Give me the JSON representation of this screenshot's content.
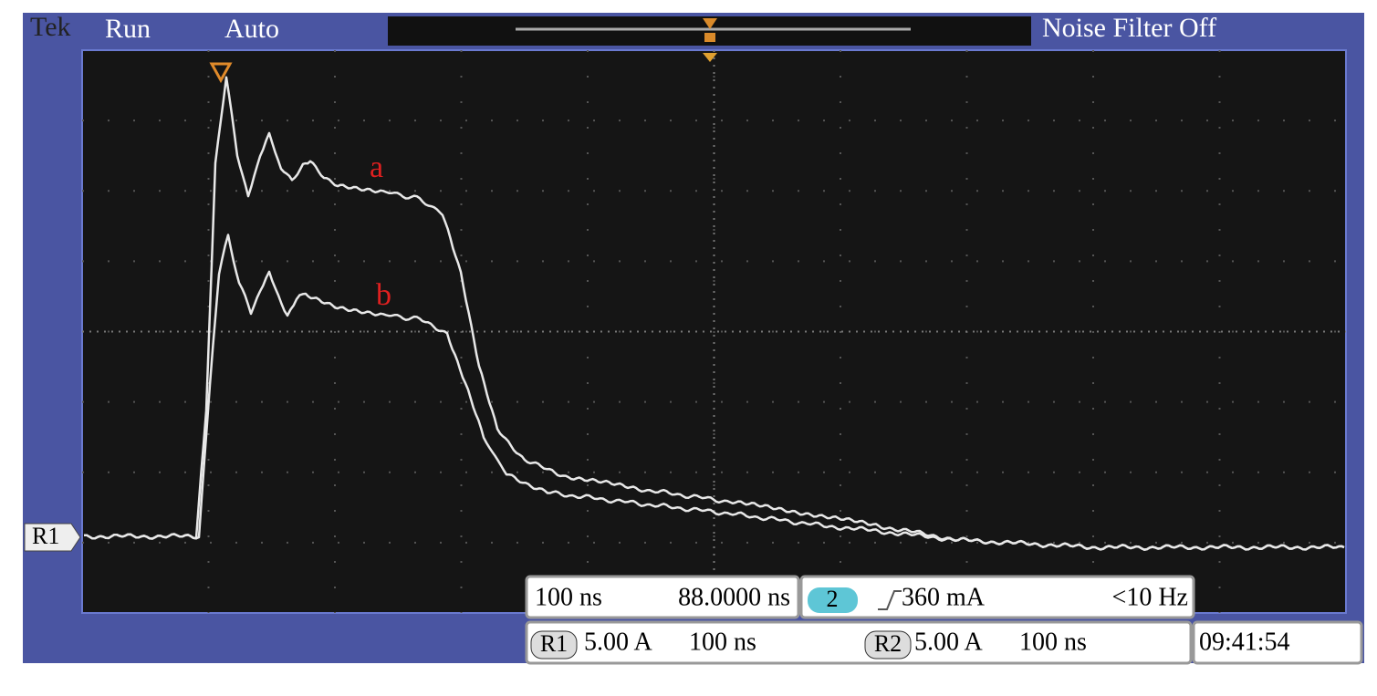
{
  "header": {
    "brand": "Tek",
    "state": "Run",
    "mode": "Auto",
    "filter": "Noise Filter Off"
  },
  "ground_marker": "R1",
  "trace_labels": [
    "a",
    "b"
  ],
  "timebase": {
    "scale": "100 ns",
    "position": "88.0000 ns"
  },
  "trigger": {
    "channel": "2",
    "level": "360 mA",
    "frequency": "<10 Hz"
  },
  "references": [
    {
      "label": "R1",
      "scale": "5.00 A",
      "time": "100 ns"
    },
    {
      "label": "R2",
      "scale": "5.00 A",
      "time": "100 ns"
    }
  ],
  "clock": "09:41:54"
}
